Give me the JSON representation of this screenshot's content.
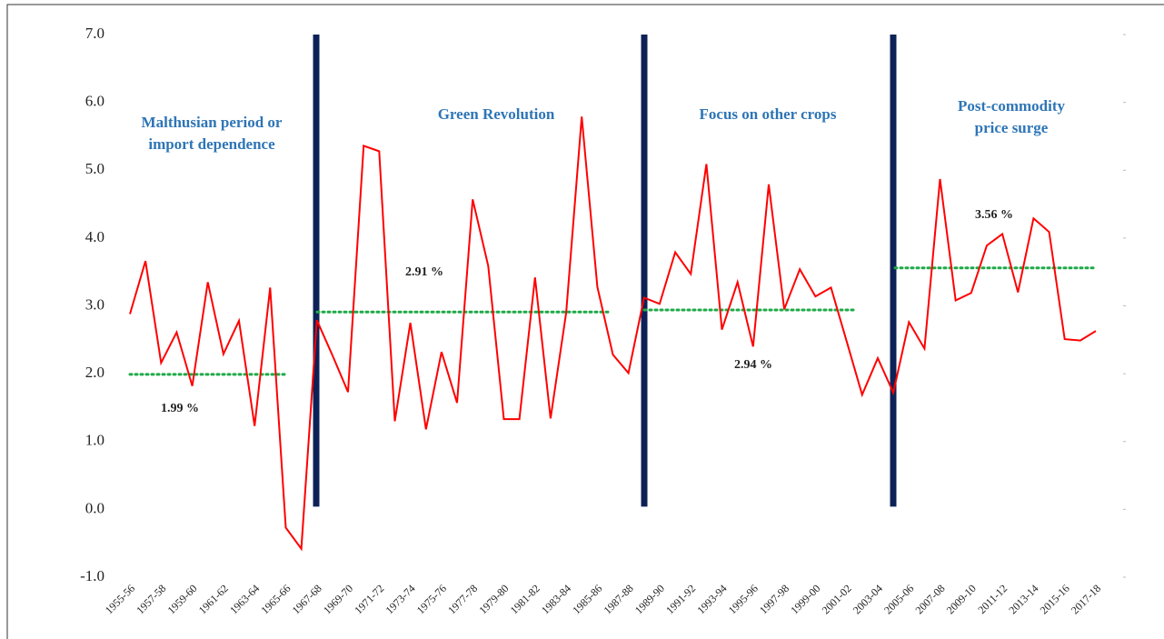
{
  "chart_data": {
    "type": "line",
    "categories": [
      "1955-56",
      null,
      "1957-58",
      null,
      "1959-60",
      null,
      "1961-62",
      null,
      "1963-64",
      null,
      "1965-66",
      null,
      "1967-68",
      null,
      "1969-70",
      null,
      "1971-72",
      null,
      "1973-74",
      null,
      "1975-76",
      null,
      "1977-78",
      null,
      "1979-80",
      null,
      "1981-82",
      null,
      "1983-84",
      null,
      "1985-86",
      null,
      "1987-88",
      null,
      "1989-90",
      null,
      "1991-92",
      null,
      "1993-94",
      null,
      "1995-96",
      null,
      "1997-98",
      null,
      "1999-00",
      null,
      "2001-02",
      null,
      "2003-04",
      null,
      "2005-06",
      null,
      "2007-08",
      null,
      "2009-10",
      null,
      "2011-12",
      null,
      "2013-14",
      null,
      "2015-16",
      null,
      "2017-18"
    ],
    "series": [
      {
        "color": "#ff0000",
        "values": [
          2.88,
          3.66,
          2.16,
          2.61,
          1.82,
          3.35,
          2.29,
          2.78,
          1.23,
          3.27,
          -0.27,
          -0.58,
          2.79,
          2.27,
          1.73,
          5.36,
          5.28,
          1.3,
          2.75,
          1.18,
          2.32,
          1.57,
          4.57,
          3.59,
          1.33,
          1.33,
          3.42,
          1.34,
          2.9,
          5.79,
          3.28,
          2.28,
          2.01,
          3.12,
          3.03,
          3.79,
          3.47,
          5.09,
          2.65,
          3.35,
          2.4,
          4.79,
          2.95,
          3.54,
          3.14,
          3.27,
          2.48,
          1.69,
          2.23,
          1.72,
          2.76,
          2.37,
          4.87,
          3.08,
          3.19,
          3.89,
          4.06,
          3.2,
          4.29,
          4.09,
          2.51,
          2.49,
          2.63
        ]
      }
    ],
    "ylim": [
      -1,
      7
    ],
    "yticks": [
      {
        "value": -1,
        "label": "-1.0"
      },
      {
        "value": 0,
        "label": "0.0"
      },
      {
        "value": 1,
        "label": "1.0"
      },
      {
        "value": 2,
        "label": "2.0"
      },
      {
        "value": 3,
        "label": "3.0"
      },
      {
        "value": 4,
        "label": "4.0"
      },
      {
        "value": 5,
        "label": "5.0"
      },
      {
        "value": 6,
        "label": "6.0"
      },
      {
        "value": 7,
        "label": "7.0"
      }
    ],
    "periods": [
      {
        "name": [
          "Malthusian period or",
          "import dependence"
        ],
        "average": 1.99,
        "average_label": "1.99 %"
      },
      {
        "name": [
          "Green Revolution"
        ],
        "average": 2.91,
        "average_label": "2.91 %"
      },
      {
        "name": [
          "Focus on other crops"
        ],
        "average": 2.94,
        "average_label": "2.94 %"
      },
      {
        "name": [
          "Post-commodity",
          "price surge"
        ],
        "average": 3.56,
        "average_label": "3.56 %"
      }
    ],
    "average_color": "#1faa48",
    "divider_color": "#0c2257"
  }
}
